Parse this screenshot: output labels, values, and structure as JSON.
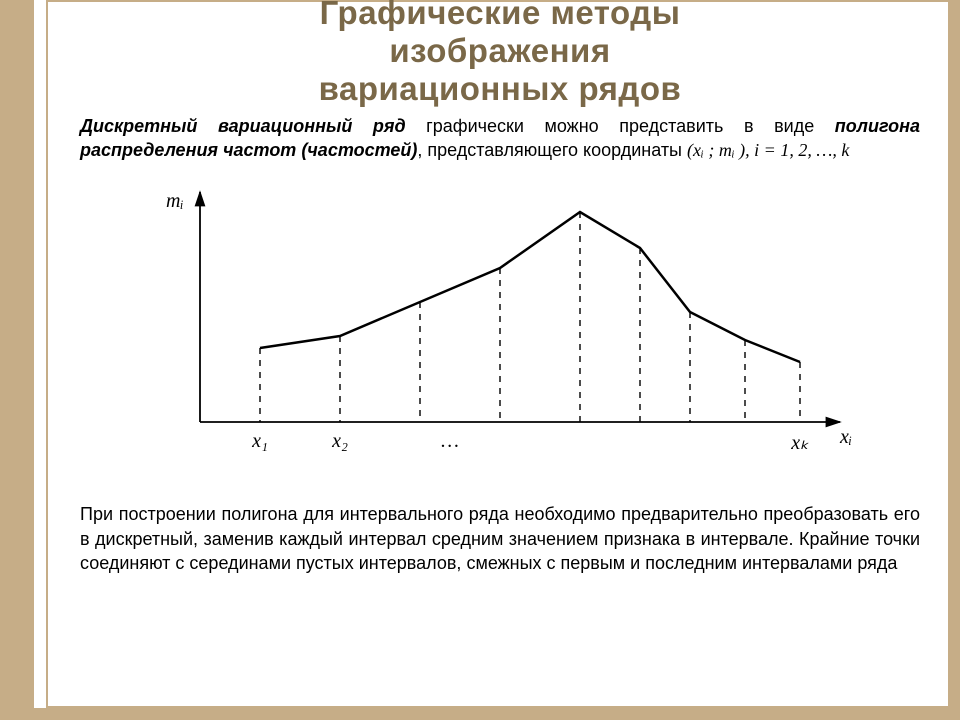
{
  "title": {
    "line1": "Графические методы",
    "line2": "изображения",
    "line3": "вариационных рядов"
  },
  "para1": {
    "term1": "Дискретный вариационный ряд",
    "t1": " графически можно пред­ставить в виде ",
    "term2": "полигона распределения частот (частостей)",
    "t2": ", пред­ставляющего координаты ",
    "coords": "(xᵢ ; mᵢ ), i = 1, 2, …, k"
  },
  "chart": {
    "y_label": "mᵢ",
    "x_label": "xᵢ",
    "x_ticks": [
      "x₁",
      "x₂",
      "…",
      "xₖ"
    ],
    "polygon_points": [
      {
        "x": 120,
        "y": 176
      },
      {
        "x": 200,
        "y": 164
      },
      {
        "x": 280,
        "y": 130
      },
      {
        "x": 360,
        "y": 96
      },
      {
        "x": 440,
        "y": 40
      },
      {
        "x": 500,
        "y": 76
      },
      {
        "x": 550,
        "y": 140
      },
      {
        "x": 605,
        "y": 168
      },
      {
        "x": 660,
        "y": 190
      }
    ],
    "axis_origin": {
      "x": 60,
      "y": 250
    },
    "x_axis_end": 700,
    "y_axis_top": 20,
    "line_color": "#000000",
    "line_width_polygon": 2.5,
    "line_width_axis": 1.8,
    "dash": "6,6",
    "tick_positions": [
      120,
      200,
      280,
      660
    ],
    "ellipsis_x": 310
  },
  "para2": "При построении полигона для интервального ряда необходимо предва­рительно преобразовать его в дискретный, заменив каждый интервал средним значением признака в интервале. Крайние точки соединяют с серединами пустых интервалов, смежных с первым и последним интер­валами ряда",
  "colors": {
    "frame": "#c6ad87",
    "title": "#7a6848",
    "text": "#000000",
    "bg": "#ffffff"
  }
}
